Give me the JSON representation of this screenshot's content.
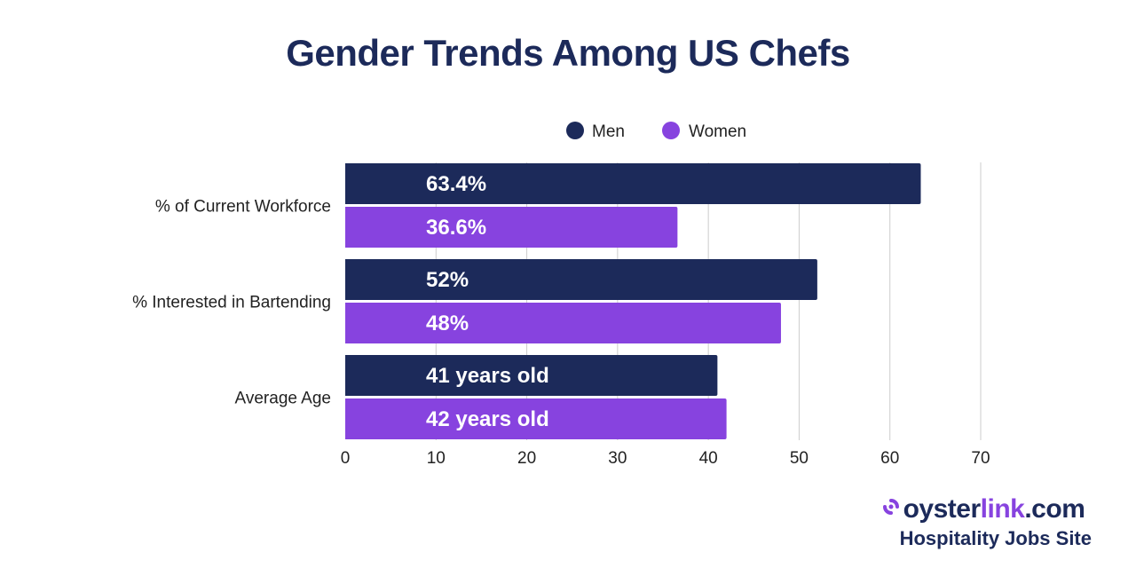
{
  "chart_data": {
    "type": "bar",
    "orientation": "horizontal",
    "title": "Gender Trends Among US Chefs",
    "categories": [
      "% of Current Workforce",
      "% Interested in Bartending",
      "Average Age"
    ],
    "series": [
      {
        "name": "Men",
        "color": "#1c2a5a",
        "values": [
          63.4,
          52,
          41
        ],
        "labels": [
          "63.4%",
          "52%",
          "41 years old"
        ]
      },
      {
        "name": "Women",
        "color": "#8743df",
        "values": [
          36.6,
          48,
          42
        ],
        "labels": [
          "36.6%",
          "48%",
          "42 years old"
        ]
      }
    ],
    "xlim": [
      0,
      70
    ],
    "xticks": [
      0,
      10,
      20,
      30,
      40,
      50,
      60,
      70
    ],
    "xlabel": "",
    "ylabel": "",
    "grid": true,
    "legend_position": "top"
  },
  "colors": {
    "title": "#1c2a5a",
    "grid": "#cccccc",
    "brand_dark": "#1c2a5a",
    "brand_accent": "#8743df"
  },
  "brand": {
    "name_prefix": "oyster",
    "name_accent": "link",
    "name_suffix": ".com",
    "tagline": "Hospitality Jobs Site"
  }
}
